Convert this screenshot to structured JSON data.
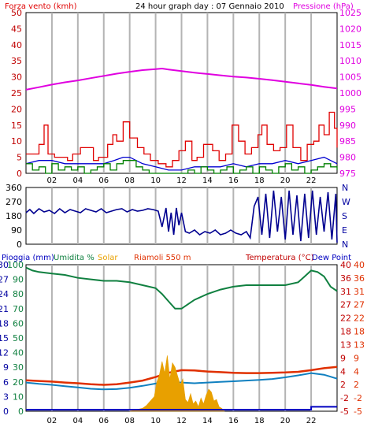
{
  "header": {
    "left_label": "Forza vento (kmh)",
    "title": "24 hour graph day : 07 Gennaio 2010",
    "right_label": "Pressione (hPa)"
  },
  "colors": {
    "pressure": "#e000e0",
    "wind_gust": "#e00000",
    "wind_avg": "#0000d0",
    "wind_low": "#008000",
    "direction": "#000090",
    "humidity": "#108040",
    "solar": "#e8a000",
    "temperature": "#e03000",
    "dewpoint": "#1080c0",
    "rain": "#0000c0",
    "label_blue": "#0000a0",
    "label_red": "#c00000"
  },
  "chart_data": [
    {
      "type": "line",
      "name": "wind_pressure",
      "title": "24 hour graph day : 07 Gennaio 2010",
      "ylabel_left": "Forza vento (kmh)",
      "ylabel_right": "Pressione (hPa)",
      "x_ticks": [
        "02",
        "04",
        "06",
        "08",
        "10",
        "12",
        "14",
        "16",
        "18",
        "20",
        "22"
      ],
      "left_ticks": [
        "0",
        "5",
        "10",
        "15",
        "20",
        "25",
        "30",
        "35",
        "40",
        "45",
        "50"
      ],
      "right_ticks": [
        "975",
        "980",
        "985",
        "990",
        "995",
        "1000",
        "1005",
        "1010",
        "1015",
        "1020",
        "1025"
      ],
      "ylim_left": [
        0,
        50
      ],
      "ylim_right": [
        975,
        1025
      ],
      "series": [
        {
          "key": "pressure",
          "axis": "right",
          "x": [
            0,
            1,
            2,
            3,
            4,
            5,
            6,
            7,
            8,
            9,
            10,
            10.5,
            11,
            12,
            13,
            14,
            15,
            16,
            17,
            18,
            19,
            20,
            21,
            22,
            23,
            24
          ],
          "y": [
            1001.0,
            1001.8,
            1002.6,
            1003.3,
            1003.9,
            1004.6,
            1005.3,
            1006.0,
            1006.6,
            1007.1,
            1007.4,
            1007.6,
            1007.3,
            1006.8,
            1006.3,
            1005.9,
            1005.5,
            1005.1,
            1004.8,
            1004.4,
            1004.0,
            1003.5,
            1003.0,
            1002.5,
            1001.9,
            1001.4
          ]
        },
        {
          "key": "wind_gust",
          "axis": "left",
          "style": "steps",
          "x": [
            0,
            0.6,
            1,
            1.4,
            1.7,
            2.2,
            3.2,
            3.6,
            4.2,
            5.2,
            5.6,
            6.3,
            6.7,
            7,
            7.5,
            8,
            8.6,
            9.1,
            9.6,
            10.2,
            10.8,
            11.3,
            11.8,
            12.3,
            12.8,
            13.2,
            13.7,
            14.4,
            14.9,
            15.4,
            15.9,
            16.4,
            16.9,
            17.4,
            17.9,
            18.2,
            18.6,
            19.1,
            19.6,
            20.1,
            20.6,
            21.2,
            21.7,
            22.2,
            22.6,
            23,
            23.4,
            23.8,
            24
          ],
          "y": [
            6,
            6,
            9,
            15,
            6,
            5,
            4,
            6,
            8,
            4,
            5,
            9,
            12,
            10,
            16,
            11,
            8,
            6,
            4,
            3,
            2,
            4,
            7,
            10,
            4,
            5,
            9,
            7,
            4,
            6,
            15,
            10,
            6,
            8,
            12,
            15,
            9,
            7,
            8,
            15,
            8,
            4,
            9,
            10,
            15,
            12,
            19,
            14,
            8
          ]
        },
        {
          "key": "wind_avg",
          "axis": "left",
          "x": [
            0,
            1,
            2,
            3,
            4,
            5,
            6,
            6.8,
            7.5,
            8,
            9,
            10,
            11,
            12,
            13,
            14,
            15,
            16,
            17,
            18,
            19,
            20,
            21,
            22,
            23,
            23.5,
            24
          ],
          "y": [
            3,
            4,
            4,
            3,
            3,
            3,
            3,
            4,
            5,
            5,
            3,
            2,
            1,
            1,
            2,
            2,
            2,
            3,
            2,
            3,
            3,
            4,
            3,
            4,
            5,
            4,
            3
          ]
        },
        {
          "key": "wind_low",
          "axis": "left",
          "style": "steps",
          "x": [
            0,
            0.5,
            1,
            1.5,
            2,
            2.5,
            3,
            3.5,
            4,
            4.5,
            5,
            5.5,
            6,
            6.5,
            7,
            7.5,
            8,
            8.5,
            9,
            9.5,
            10,
            12,
            12.5,
            13,
            13.5,
            14,
            14.5,
            15,
            15.5,
            16,
            16.5,
            17,
            17.5,
            18,
            18.5,
            19,
            19.5,
            20,
            20.5,
            21,
            21.5,
            22,
            22.5,
            23,
            23.5,
            24
          ],
          "y": [
            3,
            1,
            2,
            0,
            3,
            1,
            2,
            1,
            2,
            0,
            1,
            2,
            3,
            1,
            3,
            4,
            4,
            2,
            1,
            0,
            0,
            0,
            1,
            0,
            2,
            1,
            0,
            1,
            2,
            0,
            1,
            2,
            0,
            2,
            1,
            0,
            2,
            3,
            1,
            2,
            0,
            1,
            2,
            3,
            2,
            1
          ]
        }
      ]
    },
    {
      "type": "line",
      "name": "wind_direction",
      "ylim": [
        0,
        360
      ],
      "left_ticks": [
        "0",
        "90",
        "180",
        "270",
        "360"
      ],
      "right_ticks": [
        "N",
        "W",
        "S",
        "E",
        "N"
      ],
      "x": [
        0,
        0.3,
        0.6,
        1,
        1.4,
        1.8,
        2.2,
        2.6,
        3,
        3.4,
        3.8,
        4.2,
        4.6,
        5,
        5.4,
        5.8,
        6.2,
        6.6,
        7,
        7.4,
        7.8,
        8.2,
        8.6,
        9,
        9.4,
        9.8,
        10.2,
        10.5,
        10.8,
        11,
        11.2,
        11.4,
        11.6,
        11.8,
        12,
        12.3,
        12.6,
        13,
        13.4,
        13.8,
        14.2,
        14.6,
        15,
        15.4,
        15.8,
        16.2,
        16.6,
        17,
        17.3,
        17.6,
        17.9,
        18.2,
        18.5,
        18.8,
        19.1,
        19.4,
        19.7,
        20,
        20.3,
        20.6,
        20.9,
        21.2,
        21.5,
        21.8,
        22.1,
        22.4,
        22.7,
        23,
        23.3,
        23.6,
        23.9,
        24
      ],
      "y": [
        200,
        220,
        195,
        225,
        205,
        215,
        195,
        225,
        200,
        220,
        210,
        200,
        225,
        215,
        205,
        225,
        200,
        210,
        220,
        225,
        205,
        220,
        210,
        215,
        225,
        220,
        210,
        110,
        230,
        80,
        200,
        60,
        230,
        120,
        200,
        80,
        70,
        90,
        60,
        80,
        70,
        90,
        60,
        70,
        90,
        70,
        60,
        80,
        40,
        240,
        300,
        60,
        320,
        40,
        340,
        80,
        300,
        30,
        340,
        60,
        310,
        20,
        320,
        40,
        340,
        60,
        300,
        80,
        330,
        30,
        320,
        10
      ]
    },
    {
      "type": "line",
      "name": "temperature_humidity",
      "labels": {
        "rain": "Pioggia (mm)",
        "humidity": "Umidita %",
        "solar": "Solar",
        "snow": "Riamoli 550 m",
        "temperature": "Temperatura (°C)",
        "dewpoint": "Dew Point"
      },
      "left_ticks_rain": [
        "0",
        "3",
        "6",
        "9",
        "12",
        "15",
        "18",
        "21",
        "24",
        "27",
        "30"
      ],
      "left_ticks_hum": [
        "0",
        "10",
        "20",
        "30",
        "40",
        "50",
        "60",
        "70",
        "80",
        "90",
        "100"
      ],
      "right_ticks_temp": [
        "-5",
        "-2",
        "2",
        "4",
        "9",
        "13",
        "18",
        "22",
        "27",
        "31",
        "36",
        "40"
      ],
      "right_ticks_dew": [
        "-5",
        "-2",
        "2",
        "4",
        "9",
        "13",
        "18",
        "22",
        "27",
        "31",
        "36",
        "40"
      ],
      "ylim_humidity": [
        0,
        100
      ],
      "ylim_temperature": [
        -5,
        40
      ],
      "series": [
        {
          "key": "humidity",
          "axis": "humidity",
          "x": [
            0,
            0.5,
            1,
            2,
            3,
            4,
            5,
            6,
            7,
            8,
            9,
            10,
            10.5,
            11,
            11.5,
            12,
            12.5,
            13,
            14,
            15,
            16,
            17,
            18,
            19,
            20,
            21,
            21.5,
            22,
            22.5,
            23,
            23.5,
            24
          ],
          "y": [
            98,
            96,
            95,
            94,
            93,
            91,
            90,
            89,
            89,
            88,
            86,
            84,
            80,
            75,
            70,
            70,
            73,
            76,
            80,
            83,
            85,
            86,
            86,
            86,
            86,
            88,
            92,
            96,
            95,
            92,
            85,
            82
          ]
        },
        {
          "key": "temperature",
          "axis": "temperature",
          "x": [
            0,
            1,
            2,
            3,
            4,
            5,
            6,
            7,
            8,
            9,
            10,
            11,
            12,
            13,
            14,
            15,
            16,
            17,
            18,
            19,
            20,
            21,
            22,
            23,
            24
          ],
          "y": [
            4.5,
            4.3,
            4.1,
            3.8,
            3.6,
            3.3,
            3.1,
            3.3,
            3.8,
            4.4,
            5.5,
            6.8,
            7.6,
            7.5,
            7.2,
            7.0,
            6.8,
            6.7,
            6.7,
            6.8,
            6.9,
            7.1,
            7.6,
            8.2,
            8.6
          ]
        },
        {
          "key": "dewpoint",
          "axis": "temperature",
          "x": [
            0,
            1,
            2,
            3,
            4,
            5,
            6,
            7,
            8,
            9,
            10,
            11,
            12,
            13,
            14,
            15,
            16,
            17,
            18,
            19,
            20,
            21,
            22,
            23,
            24
          ],
          "y": [
            3.8,
            3.4,
            3.1,
            2.7,
            2.3,
            1.9,
            1.7,
            1.8,
            2.2,
            2.8,
            3.5,
            4.0,
            3.8,
            3.6,
            3.8,
            4.0,
            4.2,
            4.4,
            4.6,
            4.9,
            5.4,
            6.0,
            6.7,
            6.2,
            5.0
          ]
        },
        {
          "key": "solar",
          "axis": "humidity",
          "style": "area",
          "x": [
            8.0,
            8.5,
            9.0,
            9.3,
            9.6,
            9.9,
            10.1,
            10.3,
            10.5,
            10.7,
            10.9,
            11.1,
            11.3,
            11.5,
            11.7,
            11.9,
            12.1,
            12.3,
            12.5,
            12.7,
            12.9,
            13.1,
            13.3,
            13.5,
            13.7,
            13.9,
            14.1,
            14.3,
            14.5,
            14.7,
            14.9,
            15.1,
            15.3
          ],
          "y": [
            0,
            1,
            2,
            4,
            7,
            10,
            20,
            25,
            34,
            26,
            38,
            22,
            33,
            30,
            24,
            18,
            22,
            8,
            6,
            12,
            5,
            7,
            3,
            9,
            5,
            11,
            15,
            13,
            7,
            8,
            3,
            2,
            0
          ]
        },
        {
          "key": "rain",
          "axis": "humidity",
          "style": "steps",
          "x": [
            0,
            21.5,
            22,
            24
          ],
          "y": [
            1,
            1,
            3,
            3
          ]
        }
      ]
    }
  ]
}
